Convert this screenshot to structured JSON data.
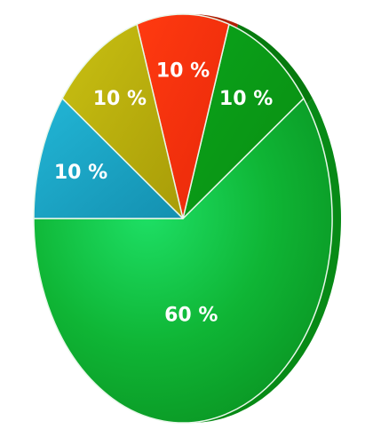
{
  "chart_data": {
    "type": "pie",
    "title": "",
    "slices": [
      {
        "label": "60 %",
        "value": 60,
        "color": "#0fb33b"
      },
      {
        "label": "10 %",
        "value": 10,
        "color": "#08a012"
      },
      {
        "label": "10 %",
        "value": 10,
        "color": "#f0300a"
      },
      {
        "label": "10 %",
        "value": 10,
        "color": "#b8ae0a"
      },
      {
        "label": "10 %",
        "value": 10,
        "color": "#189fc0"
      }
    ],
    "legend": "none",
    "style": "3d-tilted"
  }
}
